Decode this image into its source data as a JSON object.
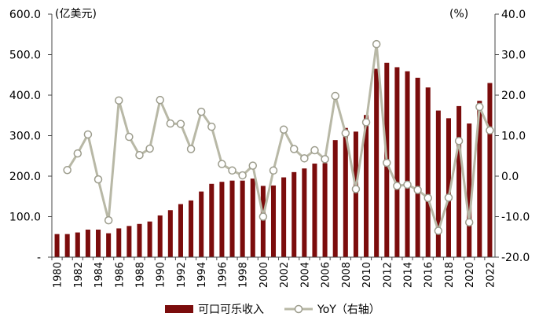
{
  "chart_data": {
    "type": "bar+line",
    "unit_left": "(亿美元)",
    "unit_right": "(%)",
    "years": [
      "1980",
      "1981",
      "1982",
      "1983",
      "1984",
      "1985",
      "1986",
      "1987",
      "1988",
      "1989",
      "1990",
      "1991",
      "1992",
      "1993",
      "1994",
      "1995",
      "1996",
      "1997",
      "1998",
      "1999",
      "2000",
      "2001",
      "2002",
      "2003",
      "2004",
      "2005",
      "2006",
      "2007",
      "2008",
      "2009",
      "2010",
      "2011",
      "2012",
      "2013",
      "2014",
      "2015",
      "2016",
      "2017",
      "2018",
      "2019",
      "2020",
      "2021",
      "2022"
    ],
    "x_tick_labels": [
      "1980",
      "1982",
      "1984",
      "1986",
      "1988",
      "1990",
      "1992",
      "1994",
      "1996",
      "1998",
      "2000",
      "2002",
      "2004",
      "2006",
      "2008",
      "2010",
      "2012",
      "2014",
      "2016",
      "2018",
      "2020",
      "2022"
    ],
    "left_axis": {
      "min": 0,
      "max": 600,
      "ticks": [
        0,
        100,
        200,
        300,
        400,
        500,
        600
      ],
      "tick_labels": [
        "-",
        "100.0",
        "200.0",
        "300.0",
        "400.0",
        "500.0",
        "600.0"
      ]
    },
    "right_axis": {
      "min": -20,
      "max": 40,
      "ticks": [
        -20,
        -10,
        0,
        10,
        20,
        30,
        40
      ],
      "tick_labels": [
        "-20.0",
        "-10.0",
        "0.0",
        "10.0",
        "20.0",
        "30.0",
        "40.0"
      ]
    },
    "series": [
      {
        "name": "可口可乐收入",
        "type": "bar",
        "axis": "left",
        "color": "#7b0c0c",
        "values": [
          57,
          57,
          61,
          68,
          68,
          59,
          71,
          77,
          82,
          88,
          103,
          116,
          131,
          140,
          162,
          181,
          186,
          189,
          189,
          194,
          176,
          177,
          197,
          210,
          219,
          231,
          232,
          289,
          319,
          310,
          351,
          465,
          480,
          469,
          459,
          443,
          419,
          362,
          343,
          373,
          330,
          386,
          430
        ]
      },
      {
        "name": "YoY（右轴）",
        "type": "line",
        "axis": "right",
        "color": "#b8b8a6",
        "values": [
          null,
          1.5,
          5.6,
          10.3,
          -0.8,
          -10.9,
          18.7,
          9.7,
          5.2,
          6.8,
          18.8,
          13.0,
          12.9,
          6.7,
          15.9,
          12.2,
          3.0,
          1.4,
          0.2,
          2.6,
          -10.0,
          1.4,
          11.5,
          6.7,
          4.4,
          6.4,
          4.2,
          19.8,
          10.6,
          -3.2,
          13.3,
          32.6,
          3.3,
          -2.4,
          -2.1,
          -3.4,
          -5.4,
          -13.5,
          -5.3,
          8.7,
          -11.4,
          17.1,
          11.3
        ]
      }
    ],
    "legend": {
      "position": "bottom"
    },
    "grid": false
  }
}
